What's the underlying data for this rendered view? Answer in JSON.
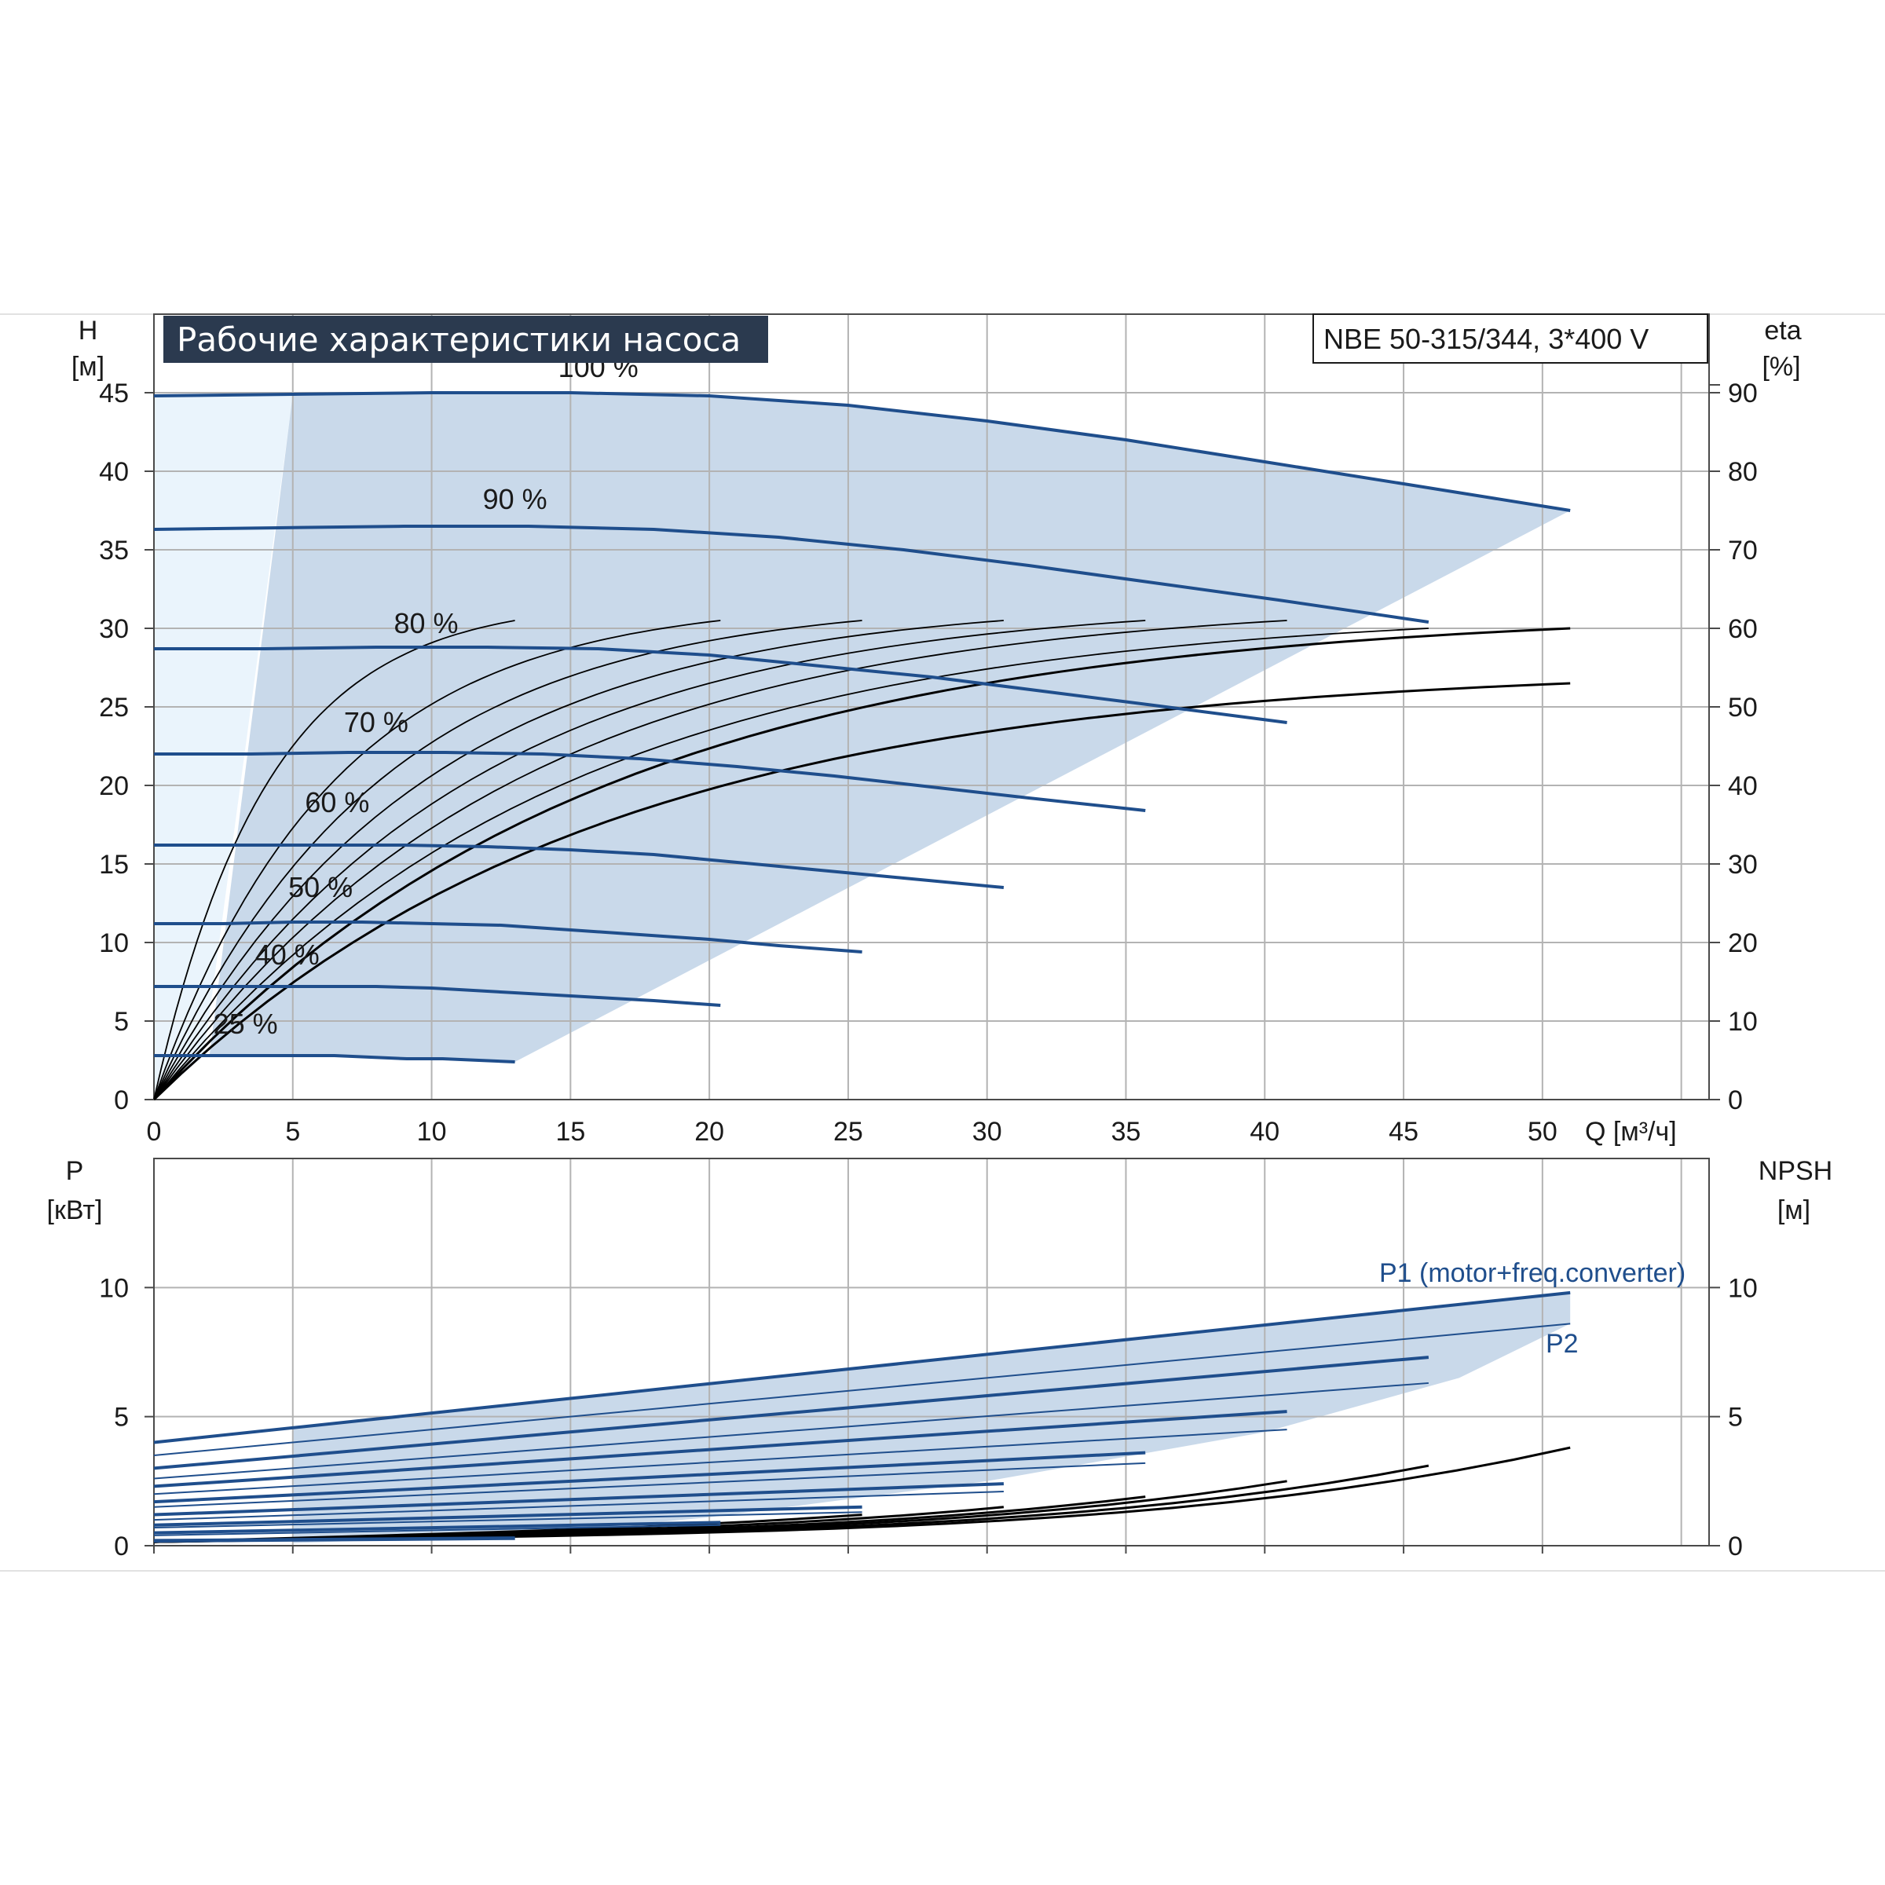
{
  "title": "Рабочие характеристики насоса",
  "model": "NBE 50-315/344, 3*400 V",
  "axes": {
    "h_label": "H",
    "h_unit": "[м]",
    "eta_label": "eta",
    "eta_unit": "[%]",
    "q_label": "Q [м³/ч]",
    "p_label": "P",
    "p_unit": "[кВт]",
    "npsh_label": "NPSH",
    "npsh_unit": "[м]"
  },
  "colors": {
    "curve": "#1f4e8c",
    "fill": "#c9d9ea",
    "fill_light": "#eaf4fc",
    "grid": "#b3b3b3",
    "title_bg": "#2b3a4f",
    "efficiency": "#000000"
  },
  "chart_data": [
    {
      "type": "line",
      "x_ticks": [
        "0",
        "5",
        "10",
        "15",
        "20",
        "25",
        "30",
        "35",
        "40",
        "45",
        "50"
      ],
      "h_ticks": [
        "0",
        "5",
        "10",
        "15",
        "20",
        "25",
        "30",
        "35",
        "40",
        "45"
      ],
      "eta_ticks": [
        "0",
        "10",
        "20",
        "30",
        "40",
        "50",
        "60",
        "70",
        "80",
        "90"
      ],
      "xlim": [
        0,
        56
      ],
      "ylim": [
        0,
        50
      ],
      "series": [
        {
          "name": "100 %",
          "x": [
            0,
            5,
            10,
            15,
            20,
            25,
            30,
            35,
            40,
            45,
            51
          ],
          "y": [
            44.8,
            44.9,
            45.0,
            45.0,
            44.8,
            44.2,
            43.2,
            42.0,
            40.6,
            39.2,
            37.5
          ]
        },
        {
          "name": "90 %",
          "x": [
            0,
            4.5,
            9,
            13.5,
            18,
            22.5,
            27,
            31.5,
            36,
            40.5,
            45.9
          ],
          "y": [
            36.3,
            36.4,
            36.5,
            36.5,
            36.3,
            35.8,
            35.0,
            34.0,
            32.9,
            31.8,
            30.4
          ]
        },
        {
          "name": "80 %",
          "x": [
            0,
            4,
            8,
            12,
            16,
            20,
            24,
            28,
            32,
            36,
            40.8
          ],
          "y": [
            28.7,
            28.7,
            28.8,
            28.8,
            28.7,
            28.3,
            27.6,
            26.9,
            26.0,
            25.1,
            24.0
          ]
        },
        {
          "name": "70 %",
          "x": [
            0,
            3.5,
            7,
            10.5,
            14,
            17.5,
            21,
            24.5,
            28,
            31.5,
            35.7
          ],
          "y": [
            22.0,
            22.0,
            22.1,
            22.1,
            22.0,
            21.7,
            21.2,
            20.6,
            19.9,
            19.2,
            18.4
          ]
        },
        {
          "name": "60 %",
          "x": [
            0,
            3,
            6,
            9,
            12,
            15,
            18,
            21,
            24,
            27,
            30.6
          ],
          "y": [
            16.2,
            16.2,
            16.2,
            16.2,
            16.1,
            15.9,
            15.6,
            15.1,
            14.6,
            14.1,
            13.5
          ]
        },
        {
          "name": "50 %",
          "x": [
            0,
            2.5,
            5,
            7.5,
            10,
            12.5,
            15,
            17.5,
            20,
            22.5,
            25.5
          ],
          "y": [
            11.2,
            11.2,
            11.3,
            11.3,
            11.2,
            11.1,
            10.8,
            10.5,
            10.2,
            9.8,
            9.4
          ]
        },
        {
          "name": "40 %",
          "x": [
            0,
            2,
            4,
            6,
            8,
            10,
            12,
            14,
            16,
            18,
            20.4
          ],
          "y": [
            7.2,
            7.2,
            7.2,
            7.2,
            7.2,
            7.1,
            6.9,
            6.7,
            6.5,
            6.3,
            6.0
          ]
        },
        {
          "name": "25 %",
          "x": [
            0,
            1.3,
            2.6,
            3.9,
            5.2,
            6.5,
            7.8,
            9.1,
            10.4,
            11.7,
            13
          ],
          "y": [
            2.8,
            2.8,
            2.8,
            2.8,
            2.8,
            2.8,
            2.7,
            2.6,
            2.6,
            2.5,
            2.4
          ]
        }
      ],
      "efficiency": [
        {
          "qmax": 13,
          "etamax": 61
        },
        {
          "qmax": 20.4,
          "etamax": 61
        },
        {
          "qmax": 25.5,
          "etamax": 61
        },
        {
          "qmax": 30.6,
          "etamax": 61
        },
        {
          "qmax": 35.7,
          "etamax": 61
        },
        {
          "qmax": 40.8,
          "etamax": 61
        },
        {
          "qmax": 45.9,
          "etamax": 60
        },
        {
          "qmax": 51,
          "etamax": 60
        },
        {
          "qmax": 51,
          "etamax": 53
        }
      ]
    },
    {
      "type": "line",
      "x_ticks": [
        "0",
        "5",
        "10",
        "15",
        "20",
        "25",
        "30",
        "35",
        "40",
        "45",
        "50"
      ],
      "p_ticks": [
        "0",
        "5",
        "10"
      ],
      "npsh_ticks": [
        "0",
        "5",
        "10"
      ],
      "xlim": [
        0,
        56
      ],
      "ylim": [
        0,
        15
      ],
      "series": [
        {
          "name": "P1 (motor+freq.converter)",
          "x": [
            0,
            51
          ],
          "y": [
            4.0,
            9.8
          ]
        },
        {
          "name": "P2",
          "x": [
            0,
            51
          ],
          "y": [
            3.5,
            8.6
          ]
        }
      ],
      "speed_lines": [
        {
          "qmax": 45.9,
          "p1": [
            3.0,
            7.3
          ],
          "p2": [
            2.6,
            6.3
          ]
        },
        {
          "qmax": 40.8,
          "p1": [
            2.3,
            5.2
          ],
          "p2": [
            2.0,
            4.5
          ]
        },
        {
          "qmax": 35.7,
          "p1": [
            1.7,
            3.6
          ],
          "p2": [
            1.5,
            3.2
          ]
        },
        {
          "qmax": 30.6,
          "p1": [
            1.2,
            2.4
          ],
          "p2": [
            1.0,
            2.1
          ]
        },
        {
          "qmax": 25.5,
          "p1": [
            0.8,
            1.5
          ],
          "p2": [
            0.7,
            1.3
          ]
        },
        {
          "qmax": 20.4,
          "p1": [
            0.5,
            0.9
          ],
          "p2": [
            0.4,
            0.8
          ]
        },
        {
          "qmax": 13,
          "p1": [
            0.2,
            0.3
          ],
          "p2": [
            0.15,
            0.25
          ]
        }
      ],
      "npsh": [
        {
          "qmax": 51,
          "npsh_end": 3.8
        },
        {
          "qmax": 45.9,
          "npsh_end": 3.1
        },
        {
          "qmax": 40.8,
          "npsh_end": 2.5
        },
        {
          "qmax": 35.7,
          "npsh_end": 1.9
        },
        {
          "qmax": 30.6,
          "npsh_end": 1.5
        },
        {
          "qmax": 25.5,
          "npsh_end": 1.2
        }
      ]
    }
  ]
}
